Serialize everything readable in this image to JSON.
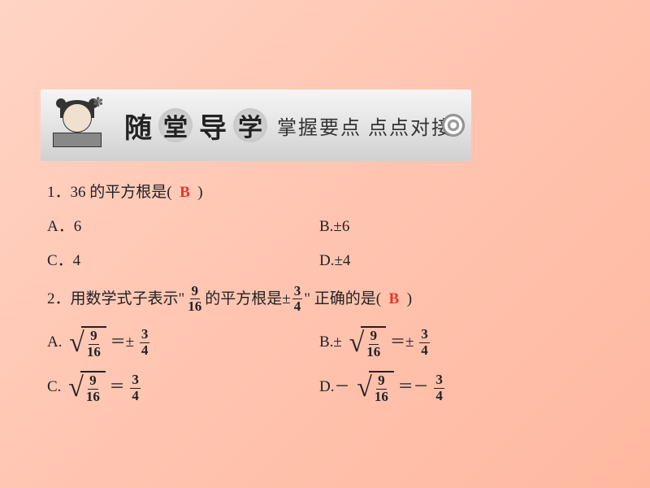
{
  "banner": {
    "char1": "随",
    "char2": "堂",
    "char3": "导",
    "char4": "学",
    "subtitle": "掌握要点  点点对接"
  },
  "q1": {
    "prefix": "1．36 的平方根是(",
    "answer": "B",
    "suffix": ")",
    "optA": "A．6",
    "optB": "B.±6",
    "optC": "C．4",
    "optD": "D.±4"
  },
  "q2": {
    "prefix": "2．用数学式子表示\"",
    "frac1_num": "9",
    "frac1_den": "16",
    "mid": "的平方根是±",
    "frac2_num": "3",
    "frac2_den": "4",
    "close_quote": "\"",
    "after": "正确的是(",
    "answer": "B",
    "suffix": ")",
    "labelA": "A.",
    "labelB": "B.±",
    "labelC": "C.",
    "labelD": "D.－",
    "eq_pm": "＝±",
    "eq": "＝",
    "eq_neg": "＝－",
    "s_num": "9",
    "s_den": "16",
    "r_num": "3",
    "r_den": "4"
  },
  "colors": {
    "answer": "#e6372a",
    "text": "#222"
  }
}
